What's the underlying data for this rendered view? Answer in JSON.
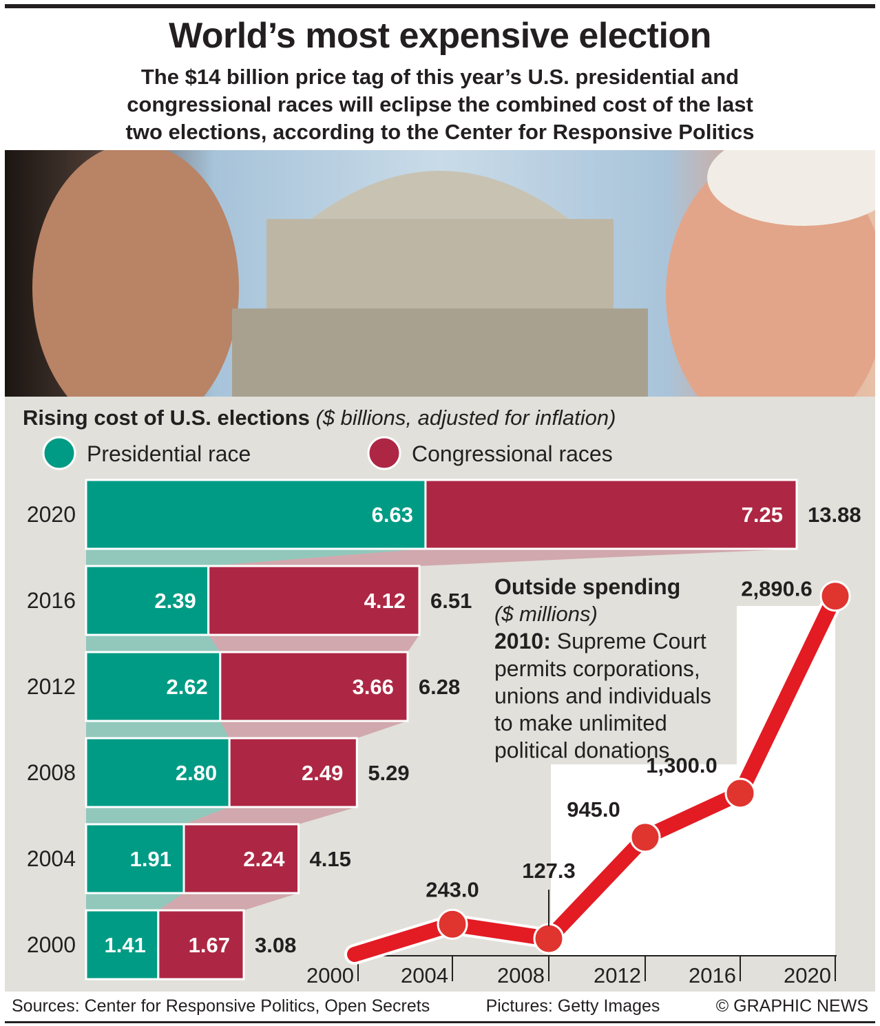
{
  "header": {
    "title": "World’s most expensive election",
    "subtitle_lines": [
      "The $14 billion price tag of this year’s U.S. presidential and",
      "congressional races will eclipse the combined cost of the last",
      "two elections, according to the Center for Responsive Politics"
    ]
  },
  "colors": {
    "presidential": "#009b84",
    "congressional": "#ad2744",
    "line": "#e31b23",
    "panel": "#e1e0da"
  },
  "chart_data": [
    {
      "type": "bar",
      "stacked": true,
      "orientation": "horizontal",
      "title": "Rising cost of U.S. elections",
      "subtitle": "($ billions, adjusted for inflation)",
      "legend": [
        "Presidential race",
        "Congressional races"
      ],
      "legend_placement": "top",
      "categories": [
        "2020",
        "2016",
        "2012",
        "2008",
        "2004",
        "2000"
      ],
      "series": [
        {
          "name": "Presidential race",
          "values": [
            6.63,
            2.39,
            2.62,
            2.8,
            1.91,
            1.41
          ],
          "labels": [
            "6.63",
            "2.39",
            "2.62",
            "2.80",
            "1.91",
            "1.41"
          ]
        },
        {
          "name": "Congressional races",
          "values": [
            7.25,
            4.12,
            3.66,
            2.49,
            2.24,
            1.67
          ],
          "labels": [
            "7.25",
            "4.12",
            "3.66",
            "2.49",
            "2.24",
            "1.67"
          ]
        }
      ],
      "totals": [
        "13.88",
        "6.51",
        "6.28",
        "5.29",
        "4.15",
        "3.08"
      ],
      "total_values": [
        13.88,
        6.51,
        6.28,
        5.29,
        4.15,
        3.08
      ]
    },
    {
      "type": "line",
      "title": "Outside spending",
      "unit": "($ millions)",
      "annotation_bold": "2010:",
      "annotation_lines": [
        " Supreme Court",
        "permits corporations,",
        "unions and individuals",
        "to make unlimited",
        "political donations"
      ],
      "x": [
        2000,
        2004,
        2008,
        2012,
        2016,
        2020
      ],
      "x_tick_labels": [
        "2000",
        "2004",
        "2008",
        "2012",
        "2016",
        "2020"
      ],
      "y": [
        0,
        243.0,
        127.3,
        945.0,
        1300.0,
        2890.6
      ],
      "point_labels": [
        null,
        "243.0",
        "127.3",
        "945.0",
        "1,300.0",
        "2,890.6"
      ],
      "ylim": [
        0,
        2900
      ]
    }
  ],
  "footer": {
    "sources": "Sources: Center for Responsive Politics, Open Secrets",
    "pictures": "Pictures: Getty Images",
    "credit": "© GRAPHIC NEWS"
  }
}
